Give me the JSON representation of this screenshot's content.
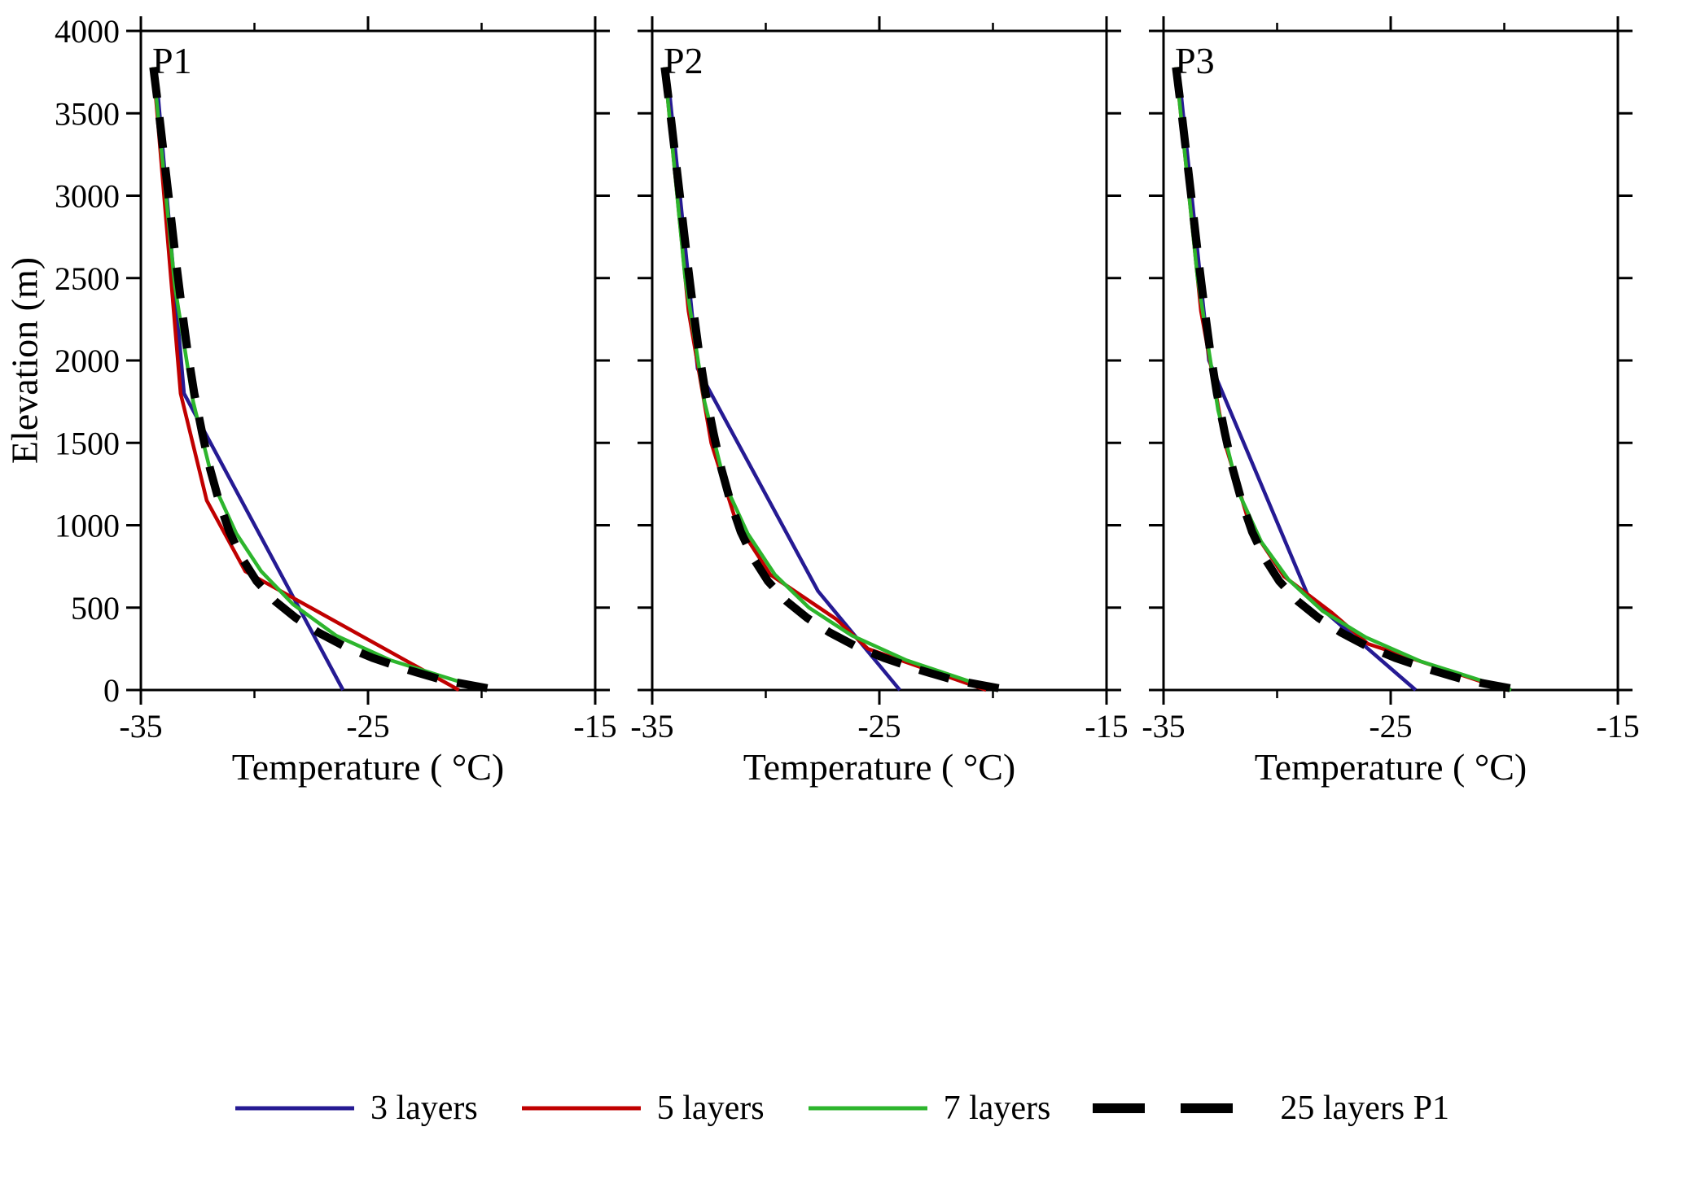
{
  "axes": {
    "x_label": "Temperature ( °C)",
    "y_label": "Elevation (m)",
    "x_range": [
      -35,
      -15
    ],
    "y_range": [
      0,
      4000
    ],
    "x_ticks_major": [
      -35,
      -25,
      -15
    ],
    "x_tick_labels": [
      "-35",
      "-25",
      "-15"
    ],
    "x_ticks_minor": [
      -30,
      -20
    ],
    "y_ticks_major": [
      0,
      500,
      1000,
      1500,
      2000,
      2500,
      3000,
      3500,
      4000
    ],
    "y_tick_labels": [
      "0",
      "500",
      "1000",
      "1500",
      "2000",
      "2500",
      "3000",
      "3500",
      "4000"
    ]
  },
  "legend": {
    "items": [
      {
        "label": "3 layers",
        "color": "#251a93",
        "dash_sample": null
      },
      {
        "label": "5 layers",
        "color": "#c00000",
        "dash_sample": null
      },
      {
        "label": "7 layers",
        "color": "#2db52d",
        "dash_sample": null
      },
      {
        "label": "25 layers P1",
        "color": "#000000",
        "dash_sample": [
          64,
          44
        ]
      }
    ]
  },
  "chart_data": [
    {
      "type": "line",
      "title": "P1",
      "xlabel": "Temperature ( °C)",
      "ylabel": "Elevation (m)",
      "xlim": [
        -35,
        -15
      ],
      "ylim": [
        0,
        4000
      ],
      "series": [
        {
          "name": "3 layers",
          "color": "#251a93",
          "width": 4.5,
          "dash": null,
          "points": [
            [
              -34.35,
              3780
            ],
            [
              -33.1,
              1800
            ],
            [
              -26.1,
              0
            ]
          ]
        },
        {
          "name": "5 layers",
          "color": "#c00000",
          "width": 4.5,
          "dash": null,
          "points": [
            [
              -34.45,
              3780
            ],
            [
              -33.25,
              1800
            ],
            [
              -32.1,
              1150
            ],
            [
              -30.4,
              720
            ],
            [
              -21.0,
              0
            ]
          ]
        },
        {
          "name": "7 layers",
          "color": "#2db52d",
          "width": 4.5,
          "dash": null,
          "points": [
            [
              -34.45,
              3780
            ],
            [
              -33.5,
              2450
            ],
            [
              -32.7,
              1750
            ],
            [
              -31.8,
              1250
            ],
            [
              -30.8,
              950
            ],
            [
              -29.7,
              720
            ],
            [
              -28.3,
              520
            ],
            [
              -26.4,
              330
            ],
            [
              -24.0,
              180
            ],
            [
              -19.8,
              0
            ]
          ]
        },
        {
          "name": "25 layers P1",
          "color": "#000000",
          "width": 10,
          "dash": [
            38,
            24
          ],
          "points": [
            [
              -34.45,
              3780
            ],
            [
              -34.2,
              3500
            ],
            [
              -33.95,
              3200
            ],
            [
              -33.7,
              2900
            ],
            [
              -33.45,
              2600
            ],
            [
              -33.2,
              2320
            ],
            [
              -32.95,
              2060
            ],
            [
              -32.65,
              1800
            ],
            [
              -32.3,
              1560
            ],
            [
              -31.95,
              1340
            ],
            [
              -31.55,
              1140
            ],
            [
              -31.1,
              960
            ],
            [
              -30.55,
              800
            ],
            [
              -29.9,
              660
            ],
            [
              -29.1,
              540
            ],
            [
              -28.2,
              440
            ],
            [
              -27.2,
              350
            ],
            [
              -26.1,
              270
            ],
            [
              -24.8,
              195
            ],
            [
              -23.3,
              125
            ],
            [
              -21.7,
              60
            ],
            [
              -19.3,
              0
            ]
          ]
        }
      ]
    },
    {
      "type": "line",
      "title": "P2",
      "xlabel": "Temperature ( °C)",
      "ylabel": "Elevation (m)",
      "xlim": [
        -35,
        -15
      ],
      "ylim": [
        0,
        4000
      ],
      "series": [
        {
          "name": "3 layers",
          "color": "#251a93",
          "width": 4.5,
          "dash": null,
          "points": [
            [
              -34.35,
              3780
            ],
            [
              -33.0,
              1950
            ],
            [
              -27.7,
              600
            ],
            [
              -24.1,
              0
            ]
          ]
        },
        {
          "name": "5 layers",
          "color": "#c00000",
          "width": 4.5,
          "dash": null,
          "points": [
            [
              -34.45,
              3780
            ],
            [
              -33.4,
              2300
            ],
            [
              -32.4,
              1500
            ],
            [
              -31.3,
              1020
            ],
            [
              -29.8,
              700
            ],
            [
              -26.9,
              430
            ],
            [
              -25.5,
              250
            ],
            [
              -20.3,
              0
            ]
          ]
        },
        {
          "name": "7 layers",
          "color": "#2db52d",
          "width": 4.5,
          "dash": null,
          "points": [
            [
              -34.45,
              3780
            ],
            [
              -33.55,
              2500
            ],
            [
              -32.7,
              1750
            ],
            [
              -31.8,
              1250
            ],
            [
              -30.8,
              950
            ],
            [
              -29.6,
              700
            ],
            [
              -28.1,
              500
            ],
            [
              -26.2,
              330
            ],
            [
              -23.8,
              180
            ],
            [
              -19.9,
              0
            ]
          ]
        },
        {
          "name": "25 layers P1",
          "color": "#000000",
          "width": 10,
          "dash": [
            38,
            24
          ],
          "points": [
            [
              -34.45,
              3780
            ],
            [
              -34.2,
              3500
            ],
            [
              -33.95,
              3200
            ],
            [
              -33.7,
              2900
            ],
            [
              -33.45,
              2600
            ],
            [
              -33.2,
              2320
            ],
            [
              -32.95,
              2060
            ],
            [
              -32.65,
              1800
            ],
            [
              -32.3,
              1560
            ],
            [
              -31.95,
              1340
            ],
            [
              -31.55,
              1140
            ],
            [
              -31.1,
              960
            ],
            [
              -30.55,
              800
            ],
            [
              -29.9,
              660
            ],
            [
              -29.1,
              540
            ],
            [
              -28.2,
              440
            ],
            [
              -27.2,
              350
            ],
            [
              -26.1,
              270
            ],
            [
              -24.8,
              195
            ],
            [
              -23.3,
              125
            ],
            [
              -21.7,
              60
            ],
            [
              -19.3,
              0
            ]
          ]
        }
      ]
    },
    {
      "type": "line",
      "title": "P3",
      "xlabel": "Temperature ( °C)",
      "ylabel": "Elevation (m)",
      "xlim": [
        -35,
        -15
      ],
      "ylim": [
        0,
        4000
      ],
      "series": [
        {
          "name": "3 layers",
          "color": "#251a93",
          "width": 4.5,
          "dash": null,
          "points": [
            [
              -34.35,
              3780
            ],
            [
              -33.0,
              2000
            ],
            [
              -28.6,
              560
            ],
            [
              -23.9,
              0
            ]
          ]
        },
        {
          "name": "5 layers",
          "color": "#c00000",
          "width": 4.5,
          "dash": null,
          "points": [
            [
              -34.45,
              3780
            ],
            [
              -33.35,
              2300
            ],
            [
              -32.3,
              1500
            ],
            [
              -31.2,
              1000
            ],
            [
              -29.7,
              690
            ],
            [
              -27.6,
              470
            ],
            [
              -26.0,
              280
            ],
            [
              -19.9,
              0
            ]
          ]
        },
        {
          "name": "7 layers",
          "color": "#2db52d",
          "width": 4.5,
          "dash": null,
          "points": [
            [
              -34.45,
              3780
            ],
            [
              -33.5,
              2500
            ],
            [
              -32.6,
              1700
            ],
            [
              -31.7,
              1200
            ],
            [
              -30.7,
              900
            ],
            [
              -29.5,
              670
            ],
            [
              -28.0,
              480
            ],
            [
              -26.1,
              320
            ],
            [
              -23.7,
              175
            ],
            [
              -19.7,
              0
            ]
          ]
        },
        {
          "name": "25 layers P1",
          "color": "#000000",
          "width": 10,
          "dash": [
            38,
            24
          ],
          "points": [
            [
              -34.45,
              3780
            ],
            [
              -34.2,
              3500
            ],
            [
              -33.95,
              3200
            ],
            [
              -33.7,
              2900
            ],
            [
              -33.45,
              2600
            ],
            [
              -33.2,
              2320
            ],
            [
              -32.95,
              2060
            ],
            [
              -32.65,
              1800
            ],
            [
              -32.3,
              1560
            ],
            [
              -31.95,
              1340
            ],
            [
              -31.55,
              1140
            ],
            [
              -31.1,
              960
            ],
            [
              -30.55,
              800
            ],
            [
              -29.9,
              660
            ],
            [
              -29.1,
              540
            ],
            [
              -28.2,
              440
            ],
            [
              -27.2,
              350
            ],
            [
              -26.1,
              270
            ],
            [
              -24.8,
              195
            ],
            [
              -23.3,
              125
            ],
            [
              -21.7,
              60
            ],
            [
              -19.3,
              0
            ]
          ]
        }
      ]
    }
  ]
}
